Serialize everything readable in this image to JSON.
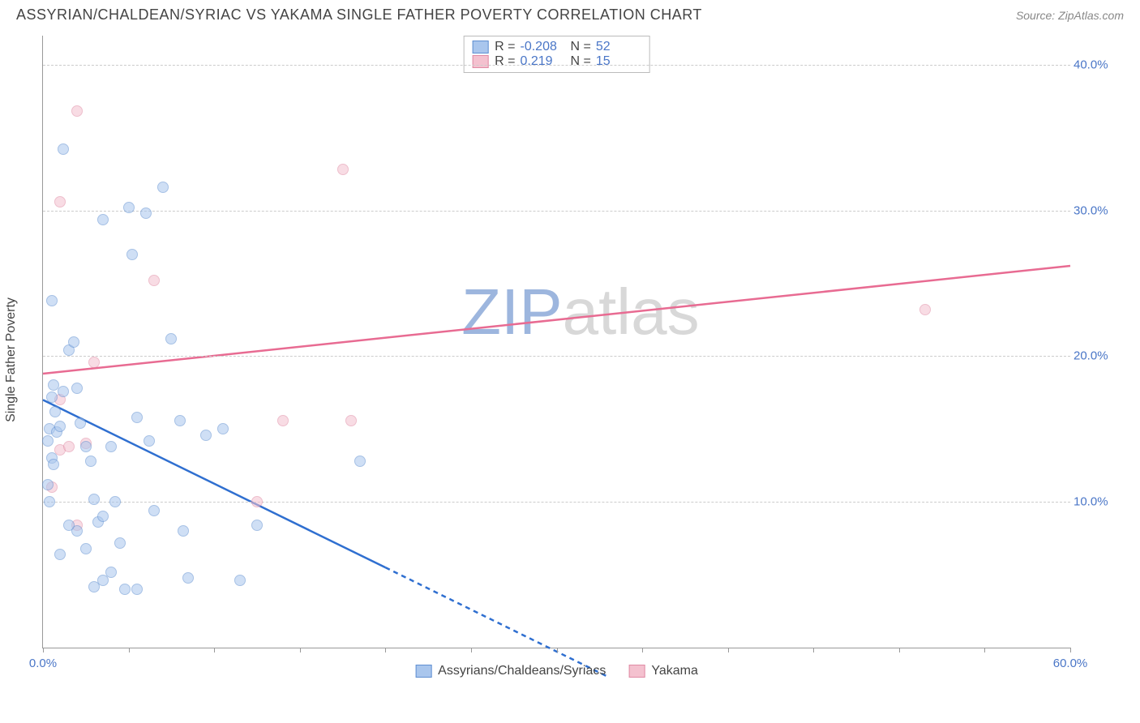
{
  "title": "ASSYRIAN/CHALDEAN/SYRIAC VS YAKAMA SINGLE FATHER POVERTY CORRELATION CHART",
  "source": "Source: ZipAtlas.com",
  "ylabel": "Single Father Poverty",
  "watermark": {
    "prefix": "ZIP",
    "suffix": "atlas"
  },
  "chart": {
    "type": "scatter",
    "background_color": "#ffffff",
    "grid_color": "#cccccc",
    "axis_color": "#999999",
    "tick_label_color": "#4a76c7",
    "tick_label_fontsize": 15,
    "xlim": [
      0,
      60
    ],
    "ylim": [
      0,
      42
    ],
    "xticks": [
      0,
      5,
      10,
      15,
      20,
      25,
      30,
      35,
      40,
      45,
      50,
      55,
      60
    ],
    "xtick_labels": {
      "0": "0.0%",
      "60": "60.0%"
    },
    "yticks": [
      10,
      20,
      30,
      40
    ],
    "ytick_labels": {
      "10": "10.0%",
      "20": "20.0%",
      "30": "30.0%",
      "40": "40.0%"
    },
    "marker_size": 14,
    "marker_opacity": 0.55
  },
  "series": {
    "assyrians": {
      "label": "Assyrians/Chaldeans/Syriacs",
      "fill_color": "#a9c6ed",
      "stroke_color": "#5f8fd1",
      "line_color": "#2f6fd0",
      "R": "-0.208",
      "N": "52",
      "trend": {
        "x1": 0,
        "y1": 17.0,
        "x2": 20,
        "y2": 5.5,
        "dash_to_x": 33,
        "dash_to_y": -2
      },
      "points": [
        [
          0.3,
          14.2
        ],
        [
          0.4,
          15.0
        ],
        [
          0.5,
          17.2
        ],
        [
          0.6,
          18.0
        ],
        [
          0.7,
          16.2
        ],
        [
          0.8,
          14.8
        ],
        [
          0.5,
          13.0
        ],
        [
          0.6,
          12.6
        ],
        [
          0.3,
          11.2
        ],
        [
          0.4,
          10.0
        ],
        [
          1.0,
          15.2
        ],
        [
          1.2,
          17.6
        ],
        [
          1.5,
          20.4
        ],
        [
          1.8,
          21.0
        ],
        [
          2.0,
          17.8
        ],
        [
          2.2,
          15.4
        ],
        [
          2.5,
          13.8
        ],
        [
          2.8,
          12.8
        ],
        [
          3.0,
          10.2
        ],
        [
          3.2,
          8.6
        ],
        [
          3.5,
          9.0
        ],
        [
          4.0,
          13.8
        ],
        [
          4.2,
          10.0
        ],
        [
          4.5,
          7.2
        ],
        [
          5.0,
          30.2
        ],
        [
          5.2,
          27.0
        ],
        [
          5.5,
          15.8
        ],
        [
          6.0,
          29.8
        ],
        [
          6.2,
          14.2
        ],
        [
          6.5,
          9.4
        ],
        [
          7.0,
          31.6
        ],
        [
          7.5,
          21.2
        ],
        [
          8.0,
          15.6
        ],
        [
          8.2,
          8.0
        ],
        [
          8.5,
          4.8
        ],
        [
          3.0,
          4.2
        ],
        [
          3.5,
          4.6
        ],
        [
          4.0,
          5.2
        ],
        [
          5.5,
          4.0
        ],
        [
          2.0,
          8.0
        ],
        [
          2.5,
          6.8
        ],
        [
          1.5,
          8.4
        ],
        [
          1.0,
          6.4
        ],
        [
          0.5,
          23.8
        ],
        [
          1.2,
          34.2
        ],
        [
          3.5,
          29.4
        ],
        [
          10.5,
          15.0
        ],
        [
          11.5,
          4.6
        ],
        [
          12.5,
          8.4
        ],
        [
          9.5,
          14.6
        ],
        [
          18.5,
          12.8
        ],
        [
          4.8,
          4.0
        ]
      ]
    },
    "yakama": {
      "label": "Yakama",
      "fill_color": "#f4c1cf",
      "stroke_color": "#e08aa4",
      "line_color": "#e86b92",
      "R": "0.219",
      "N": "15",
      "trend": {
        "x1": 0,
        "y1": 18.8,
        "x2": 60,
        "y2": 26.2
      },
      "points": [
        [
          0.5,
          11.0
        ],
        [
          1.0,
          13.6
        ],
        [
          1.5,
          13.8
        ],
        [
          2.0,
          8.4
        ],
        [
          2.5,
          14.0
        ],
        [
          1.0,
          30.6
        ],
        [
          2.0,
          36.8
        ],
        [
          3.0,
          19.6
        ],
        [
          6.5,
          25.2
        ],
        [
          12.5,
          10.0
        ],
        [
          14.0,
          15.6
        ],
        [
          17.5,
          32.8
        ],
        [
          18.0,
          15.6
        ],
        [
          51.5,
          23.2
        ],
        [
          1.0,
          17.0
        ]
      ]
    }
  },
  "legend_top": {
    "rows": [
      {
        "swatch": "assyrians",
        "R_label": "R =",
        "N_label": "N ="
      },
      {
        "swatch": "yakama",
        "R_label": "R =",
        "N_label": "N ="
      }
    ]
  }
}
